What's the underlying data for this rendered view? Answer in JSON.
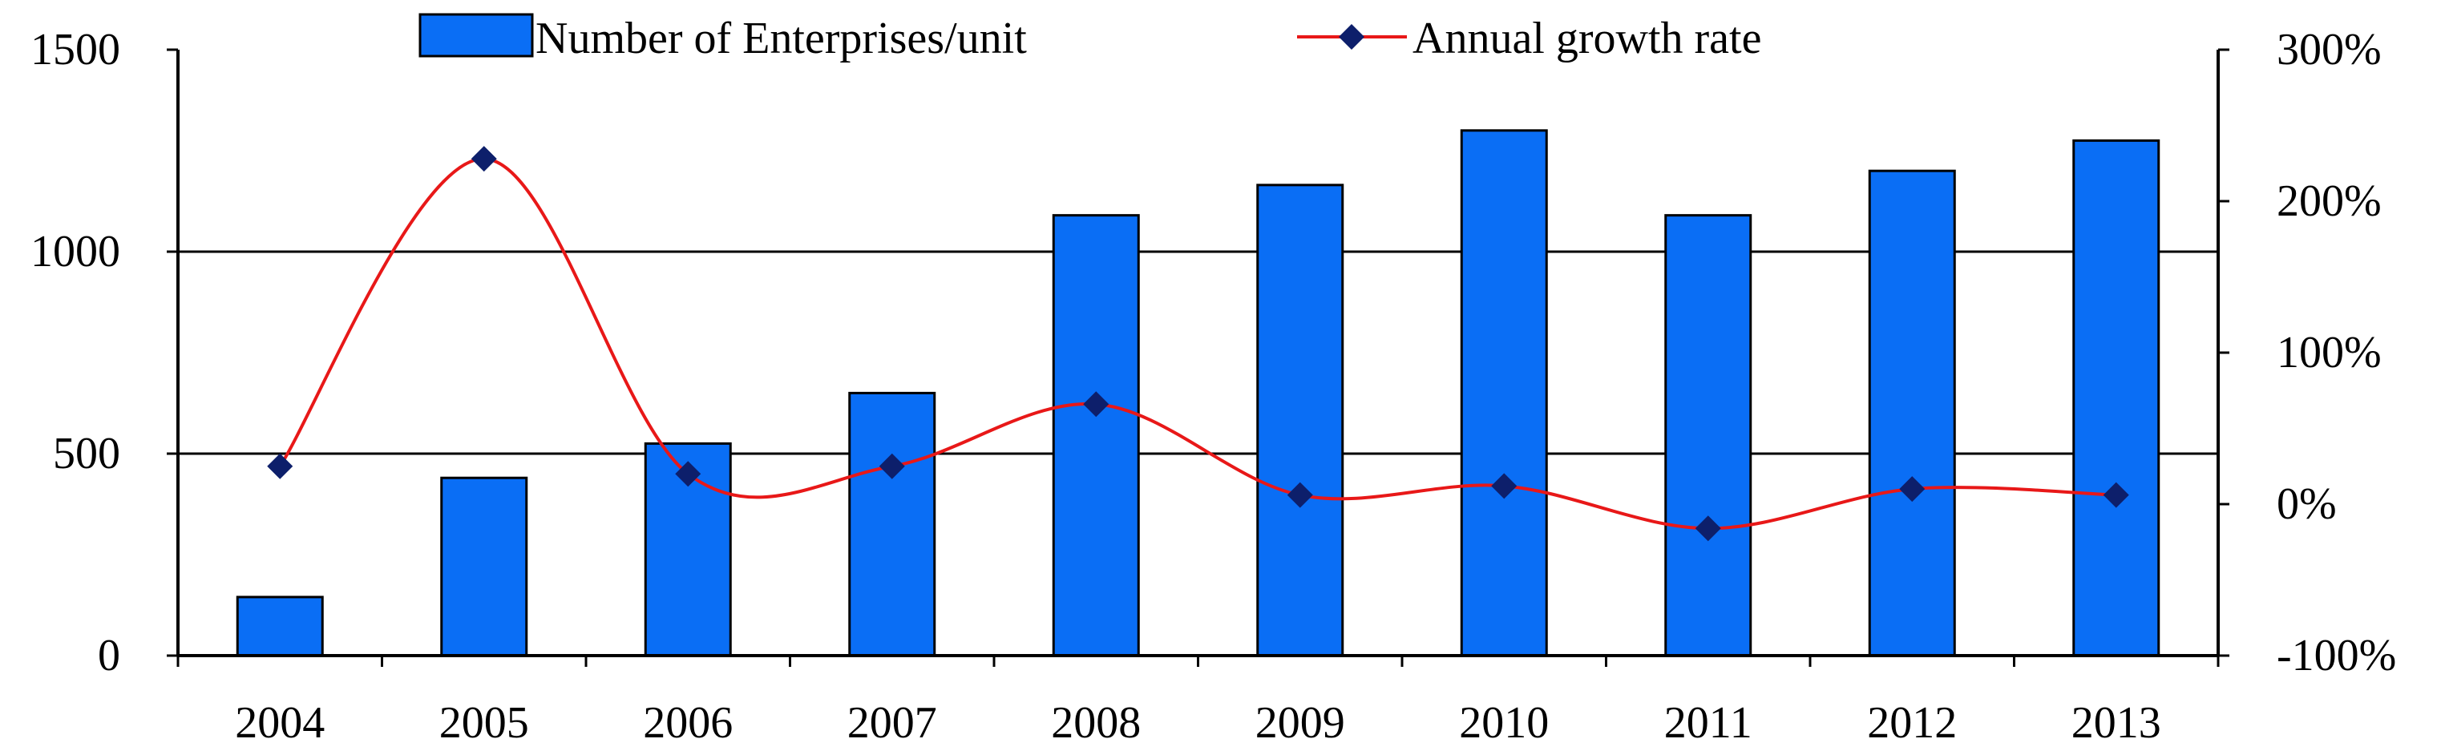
{
  "chart_data": {
    "type": "bar+line",
    "categories": [
      "2004",
      "2005",
      "2006",
      "2007",
      "2008",
      "2009",
      "2010",
      "2011",
      "2012",
      "2013"
    ],
    "series": [
      {
        "name": "Number of Enterprises/unit",
        "type": "bar",
        "axis": "left",
        "color": "#0a6ef5",
        "values": [
          145,
          440,
          525,
          650,
          1090,
          1165,
          1300,
          1090,
          1200,
          1275
        ]
      },
      {
        "name": "Annual growth rate",
        "type": "line",
        "axis": "right",
        "color": "#e81818",
        "marker_color": "#0d1f6b",
        "values": [
          25,
          228,
          20,
          25,
          66,
          6,
          12,
          -16,
          10,
          6
        ]
      }
    ],
    "y_left": {
      "ylim": [
        0,
        1500
      ],
      "ticks": [
        "0",
        "500",
        "1000",
        "1500"
      ],
      "tick_values": [
        0,
        500,
        1000,
        1500
      ]
    },
    "y_right": {
      "ylim": [
        -100,
        300
      ],
      "ticks": [
        "-100%",
        "0%",
        "100%",
        "200%",
        "300%"
      ],
      "tick_values": [
        -100,
        0,
        100,
        200,
        300
      ]
    },
    "gridlines_at_left_values": [
      500,
      1000
    ],
    "legend_position": "top-center",
    "title": "",
    "xlabel": "",
    "ylabel": ""
  }
}
